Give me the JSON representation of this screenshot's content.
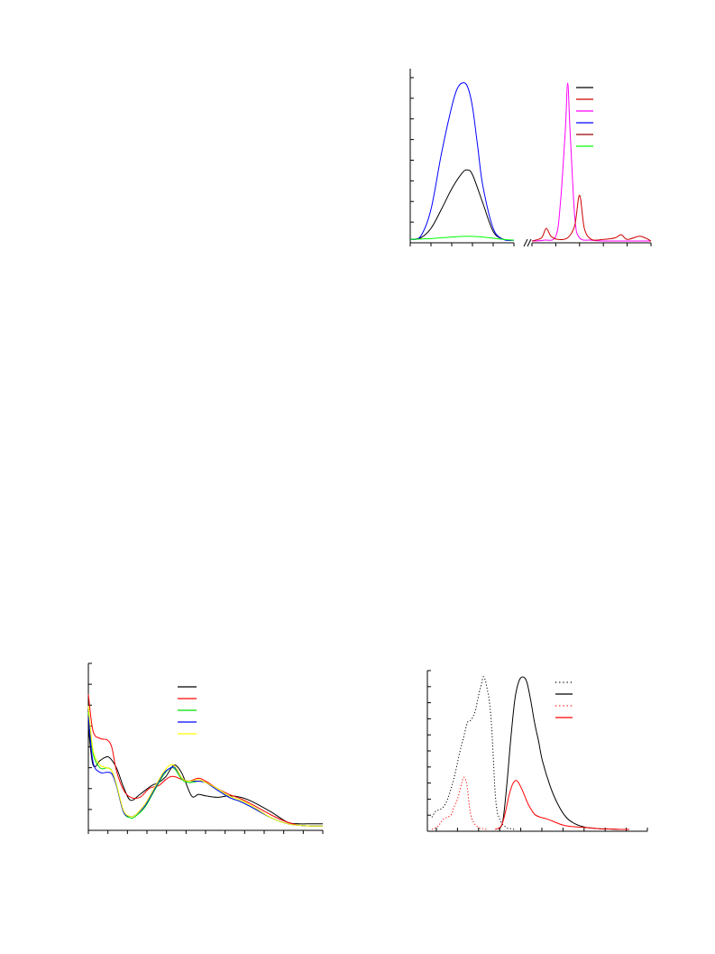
{
  "chart_data": [
    {
      "type": "line",
      "title": "",
      "xlabel": "",
      "ylabel": "",
      "broken_x_axis": true,
      "xlim_left": [
        0,
        10
      ],
      "xlim_right": [
        0,
        10
      ],
      "ylim": [
        0,
        100
      ],
      "grid": false,
      "legend_placement": "top-right",
      "series": [
        {
          "color": "#000000",
          "segment": "left",
          "x": [
            0,
            1,
            2,
            3,
            4,
            5,
            5.5,
            6,
            7,
            8,
            9,
            10
          ],
          "y": [
            1,
            2,
            8,
            20,
            33,
            43,
            45,
            42,
            24,
            6,
            1,
            0.5
          ]
        },
        {
          "color": "#0000ff",
          "segment": "left",
          "x": [
            0,
            1,
            2,
            3,
            4,
            4.5,
            5,
            5.5,
            6,
            6.5,
            7,
            8,
            9,
            10
          ],
          "y": [
            1,
            3,
            20,
            55,
            85,
            96,
            100,
            98,
            85,
            60,
            35,
            8,
            1,
            0.5
          ]
        },
        {
          "color": "#00ff00",
          "segment": "left",
          "x": [
            0,
            2,
            4,
            5.5,
            7,
            9,
            10
          ],
          "y": [
            1,
            1.5,
            2.5,
            3,
            2.5,
            1,
            0.5
          ]
        },
        {
          "color": "#ff00ff",
          "segment": "right",
          "x": [
            0,
            1,
            2,
            2.4,
            2.8,
            3,
            3.2,
            3.6,
            4,
            5,
            6,
            8,
            10
          ],
          "y": [
            0,
            0.5,
            3,
            25,
            70,
            100,
            70,
            15,
            2,
            0.5,
            0,
            0,
            0
          ]
        },
        {
          "color": "#cc0000",
          "segment": "right",
          "x": [
            0,
            0.8,
            1.2,
            1.6,
            2.2,
            3,
            3.6,
            4,
            4.4,
            5,
            6,
            7,
            7.5,
            8,
            9,
            9.5,
            10
          ],
          "y": [
            0,
            2,
            8,
            3,
            1,
            2,
            10,
            29,
            8,
            1,
            1,
            2,
            4,
            1,
            3,
            2,
            0
          ]
        }
      ],
      "legend_colors": [
        "#000000",
        "#cc0000",
        "#ff00ff",
        "#0000ff",
        "#990000",
        "#00ff00"
      ]
    },
    {
      "type": "line",
      "title": "",
      "xlabel": "",
      "ylabel": "",
      "xlim": [
        0,
        100
      ],
      "ylim": [
        0,
        100
      ],
      "grid": false,
      "legend_placement": "top-right",
      "series": [
        {
          "color": "#000000",
          "x": [
            0,
            2,
            5,
            7,
            9,
            12,
            15,
            18,
            22,
            27,
            30,
            33,
            35,
            37,
            40,
            44,
            47,
            50,
            55,
            60,
            65,
            70,
            78,
            85,
            90,
            95,
            100
          ],
          "y": [
            68,
            42,
            45,
            47,
            47,
            40,
            27,
            18,
            22,
            28,
            30,
            34,
            39,
            42,
            36,
            21,
            22,
            21,
            20,
            21,
            20,
            17,
            10,
            3,
            2,
            2,
            2
          ]
        },
        {
          "color": "#ff0000",
          "x": [
            0,
            2,
            5,
            8,
            10,
            12,
            15,
            18,
            22,
            26,
            30,
            33,
            35,
            37,
            40,
            43,
            47,
            50,
            55,
            60,
            65,
            70,
            78,
            85,
            90,
            95,
            100
          ],
          "y": [
            90,
            65,
            60,
            59,
            54,
            38,
            25,
            20,
            20,
            26,
            28,
            32,
            34,
            34,
            32,
            31,
            33,
            31,
            26,
            22,
            19,
            15,
            8,
            3,
            1,
            0.5,
            0.5
          ]
        },
        {
          "color": "#00dd00",
          "x": [
            0,
            2,
            5,
            8,
            10,
            12,
            15,
            18,
            20,
            24,
            28,
            32,
            35,
            37,
            40,
            43,
            47,
            50,
            55,
            60,
            65,
            70,
            78,
            85,
            90,
            95,
            100
          ],
          "y": [
            78,
            50,
            40,
            40,
            38,
            28,
            10,
            6,
            7,
            13,
            24,
            35,
            40,
            39,
            32,
            30,
            31,
            30,
            25,
            20,
            17,
            13,
            6,
            2,
            1,
            0.5,
            0.5
          ]
        },
        {
          "color": "#0000ff",
          "x": [
            0,
            2,
            5,
            8,
            10,
            12,
            15,
            18,
            20,
            24,
            28,
            32,
            35,
            37,
            40,
            43,
            47,
            50,
            55,
            60,
            65,
            70,
            78,
            85,
            90,
            95,
            100
          ],
          "y": [
            75,
            44,
            37,
            37,
            36,
            28,
            10,
            7,
            8,
            14,
            25,
            36,
            40,
            40,
            33,
            31,
            31,
            30,
            25,
            20,
            17,
            13,
            6,
            2,
            1,
            0.5,
            0.5
          ]
        },
        {
          "color": "#ffff00",
          "x": [
            0,
            2,
            5,
            8,
            10,
            12,
            15,
            18,
            20,
            24,
            28,
            32,
            35,
            37,
            40,
            43,
            47,
            50,
            55,
            60,
            65,
            70,
            78,
            85,
            90,
            95,
            100
          ],
          "y": [
            82,
            52,
            42,
            40,
            38,
            29,
            11,
            7,
            8,
            15,
            26,
            37,
            42,
            41,
            33,
            31,
            32,
            30,
            26,
            21,
            18,
            14,
            6,
            2,
            1,
            0.5,
            0.5
          ]
        }
      ],
      "legend_colors": [
        "#000000",
        "#ff0000",
        "#00dd00",
        "#0000ff",
        "#ffff00"
      ]
    },
    {
      "type": "line",
      "title": "",
      "xlabel": "",
      "ylabel": "",
      "xlim": [
        0,
        100
      ],
      "ylim": [
        0,
        100
      ],
      "grid": false,
      "legend_placement": "top-right",
      "series": [
        {
          "color": "#000000",
          "dashed": true,
          "x": [
            0,
            2,
            4,
            6,
            8,
            10,
            12,
            14,
            16,
            18,
            20,
            22,
            24,
            25,
            26,
            27,
            28,
            29,
            30,
            31,
            32,
            33,
            34,
            35,
            36,
            37,
            38,
            40,
            42
          ],
          "y": [
            8,
            12,
            13,
            15,
            20,
            28,
            38,
            50,
            60,
            70,
            72,
            78,
            90,
            95,
            100,
            98,
            92,
            85,
            72,
            50,
            25,
            12,
            8,
            5,
            3,
            2,
            1,
            0.5,
            0
          ]
        },
        {
          "color": "#000000",
          "dashed": false,
          "x": [
            34,
            36,
            38,
            40,
            42,
            44,
            46,
            48,
            50,
            52,
            54,
            56,
            60,
            64,
            68,
            72,
            76,
            80,
            85,
            90,
            95,
            100
          ],
          "y": [
            0,
            6,
            30,
            60,
            85,
            97,
            100,
            97,
            85,
            70,
            58,
            45,
            28,
            16,
            8,
            4,
            2,
            1,
            0.5,
            0.3,
            0,
            0
          ]
        },
        {
          "color": "#ff0000",
          "dashed": true,
          "x": [
            0,
            3,
            6,
            8,
            10,
            11,
            13,
            15,
            16,
            17,
            18,
            19,
            20,
            21,
            22,
            24,
            26,
            28
          ],
          "y": [
            0,
            2,
            7,
            8,
            10,
            14,
            20,
            30,
            34,
            33,
            27,
            15,
            8,
            5,
            3,
            1,
            0.5,
            0
          ]
        },
        {
          "color": "#ff0000",
          "dashed": false,
          "x": [
            32,
            35,
            37,
            39,
            41,
            43,
            45,
            47,
            49,
            52,
            55,
            58,
            62,
            66,
            70,
            75,
            80,
            85,
            90,
            95,
            100
          ],
          "y": [
            0,
            2,
            10,
            22,
            30,
            32,
            28,
            22,
            16,
            10,
            8,
            7,
            5,
            3,
            2,
            1.5,
            1,
            0.5,
            0.3,
            0,
            0
          ]
        }
      ],
      "legend_styles": [
        {
          "color": "#000000",
          "dashed": true
        },
        {
          "color": "#000000",
          "dashed": false
        },
        {
          "color": "#ff0000",
          "dashed": true
        },
        {
          "color": "#ff0000",
          "dashed": false
        }
      ]
    }
  ]
}
